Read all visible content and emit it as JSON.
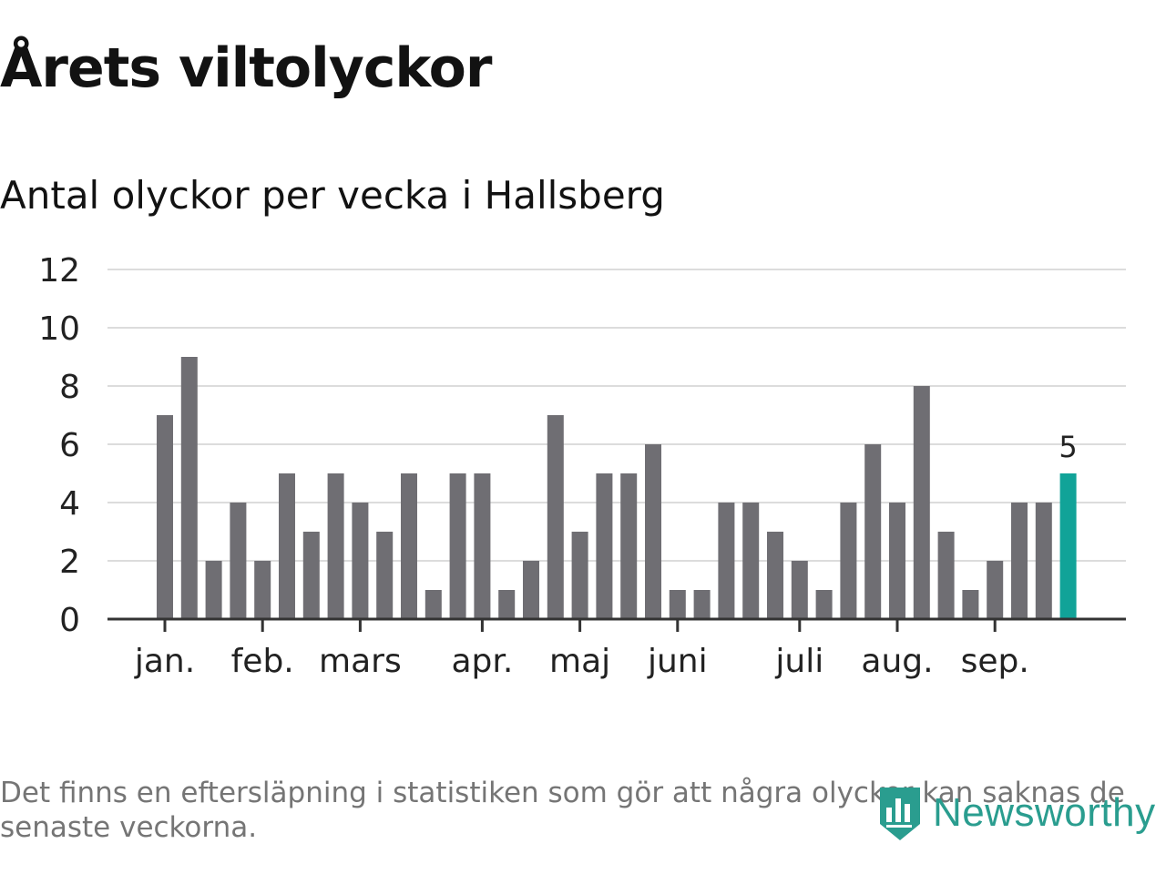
{
  "title": "Årets viltolyckor",
  "subtitle": "Antal olyckor per vecka i Hallsberg",
  "footnote": "Det finns en eftersläpning i statistiken som gör att några olyckor kan saknas de senaste veckorna.",
  "brand": {
    "name": "Newsworthy",
    "icon": "bar-chart-shield-icon"
  },
  "colors": {
    "bar": "#6f6e73",
    "highlight": "#11a398",
    "grid": "#dcdcdc",
    "axis": "#333333",
    "text": "#222222",
    "brand": "#2a9d8f"
  },
  "chart_data": {
    "type": "bar",
    "title": "Årets viltolyckor",
    "subtitle": "Antal olyckor per vecka i Hallsberg",
    "xlabel": "",
    "ylabel": "",
    "ylim": [
      0,
      12
    ],
    "yticks": [
      "0",
      "2",
      "4",
      "6",
      "8",
      "10",
      "12"
    ],
    "grid": true,
    "values": [
      7,
      9,
      2,
      4,
      2,
      5,
      3,
      5,
      4,
      3,
      5,
      1,
      5,
      5,
      1,
      2,
      7,
      3,
      5,
      5,
      6,
      1,
      1,
      4,
      4,
      3,
      2,
      1,
      4,
      6,
      4,
      8,
      3,
      1,
      2,
      4,
      4,
      5
    ],
    "highlight_index": 37,
    "highlight_label": "5",
    "month_labels": [
      {
        "label": "jan.",
        "week": 1
      },
      {
        "label": "feb.",
        "week": 5
      },
      {
        "label": "mars",
        "week": 9
      },
      {
        "label": "apr.",
        "week": 14
      },
      {
        "label": "maj",
        "week": 18
      },
      {
        "label": "juni",
        "week": 22
      },
      {
        "label": "juli",
        "week": 27
      },
      {
        "label": "aug.",
        "week": 31
      },
      {
        "label": "sep.",
        "week": 35
      }
    ]
  }
}
